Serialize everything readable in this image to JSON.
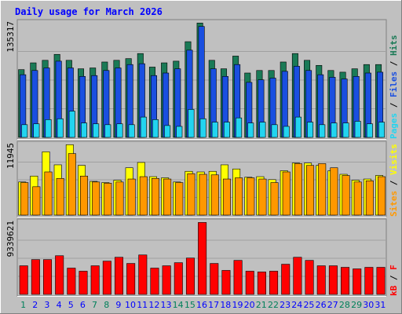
{
  "chart_data": {
    "type": "bar",
    "title": "Daily usage for March 2026",
    "categories": [
      "1",
      "2",
      "3",
      "4",
      "5",
      "6",
      "7",
      "8",
      "9",
      "10",
      "11",
      "12",
      "13",
      "14",
      "15",
      "16",
      "17",
      "18",
      "19",
      "20",
      "21",
      "22",
      "23",
      "24",
      "25",
      "26",
      "27",
      "28",
      "29",
      "30",
      "31"
    ],
    "weekend_days": [
      "1",
      "7",
      "8",
      "14",
      "15",
      "21",
      "22",
      "28",
      "29"
    ],
    "panels": [
      {
        "id": "top",
        "y_max_label": "135317",
        "ylim": [
          0,
          135317
        ],
        "side_labels": [
          "Pages",
          "Files",
          "Hits"
        ],
        "series": [
          {
            "name": "Hits",
            "color": "#1a7a56",
            "values": [
              80000,
              88000,
              91000,
              98000,
              91000,
              81000,
              82000,
              89000,
              91000,
              93000,
              99000,
              83000,
              88000,
              90000,
              113000,
              135000,
              91000,
              81000,
              96000,
              76000,
              79000,
              79000,
              89000,
              99000,
              91000,
              85000,
              79000,
              77000,
              81000,
              86000,
              86000
            ]
          },
          {
            "name": "Files",
            "color": "#1a4fe0",
            "values": [
              74000,
              79000,
              82000,
              90000,
              82000,
              72000,
              73000,
              79000,
              82000,
              86000,
              87000,
              73000,
              76000,
              81000,
              103000,
              131000,
              81000,
              72000,
              86000,
              65000,
              68000,
              70000,
              78000,
              84000,
              79000,
              74000,
              71000,
              69000,
              72000,
              76000,
              77000
            ]
          },
          {
            "name": "Pages",
            "color": "#22d4f0",
            "values": [
              15000,
              16000,
              21000,
              22000,
              31000,
              17000,
              16000,
              15000,
              16000,
              15000,
              24000,
              21000,
              14000,
              13000,
              33000,
              22000,
              18000,
              18000,
              23000,
              17000,
              18000,
              15000,
              13000,
              24000,
              18000,
              15000,
              17000,
              17000,
              19000,
              16000,
              18000
            ]
          }
        ]
      },
      {
        "id": "middle",
        "y_max_label": "11945",
        "ylim": [
          0,
          11945
        ],
        "side_labels": [
          "Sites",
          "Visits"
        ],
        "series": [
          {
            "name": "Visits",
            "color": "#ffff00",
            "values": [
              5600,
              6600,
              10700,
              8500,
              11900,
              8400,
              5700,
              5500,
              5900,
              8000,
              8900,
              6500,
              6300,
              5600,
              7400,
              7300,
              7400,
              8500,
              7800,
              6400,
              6500,
              6000,
              7500,
              8800,
              8800,
              8400,
              7500,
              6900,
              5900,
              6100,
              6700
            ]
          },
          {
            "name": "Sites",
            "color": "#ff9800",
            "values": [
              5500,
              4800,
              7300,
              6200,
              10400,
              6600,
              5600,
              5400,
              5600,
              6100,
              6500,
              6200,
              6100,
              5500,
              7000,
              6900,
              6800,
              6100,
              6300,
              6300,
              6100,
              5500,
              7300,
              8700,
              8400,
              8700,
              8000,
              6700,
              5600,
              5800,
              6500
            ]
          }
        ]
      },
      {
        "id": "bottom",
        "y_max_label": "9339621",
        "ylim": [
          0,
          9339621
        ],
        "side_labels": [
          "kB",
          "F"
        ],
        "series": [
          {
            "name": "kB F",
            "color": "#ff0000",
            "values": [
              3700000,
              4500000,
              4500000,
              5000000,
              3400000,
              3000000,
              3700000,
              4300000,
              4800000,
              4000000,
              5100000,
              3400000,
              3700000,
              4100000,
              4700000,
              9300000,
              4000000,
              3100000,
              4400000,
              3000000,
              2900000,
              3000000,
              3900000,
              4800000,
              4400000,
              3700000,
              3700000,
              3500000,
              3300000,
              3500000,
              3500000
            ]
          }
        ]
      }
    ],
    "colors": {
      "background": "#c0c0c0",
      "plot_background": "#c0c0c0",
      "title": "#0000ff",
      "weekday_label": "#0000ff",
      "weekend_label": "#00805a",
      "gridline": "#a0a0a0"
    },
    "grid": true,
    "legend_position": "right-vertical"
  }
}
